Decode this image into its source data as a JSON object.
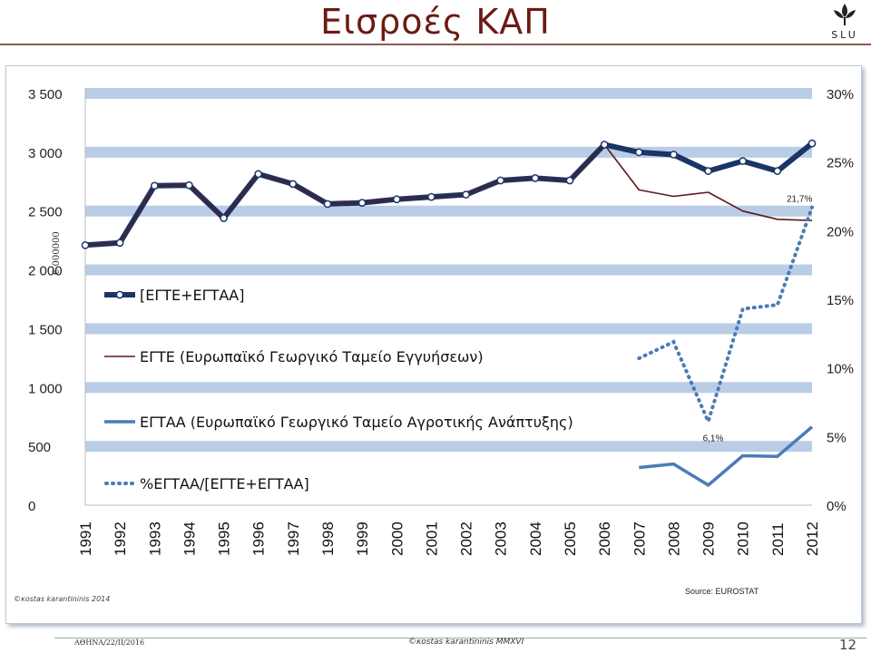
{
  "slide": {
    "title": "Εισροές ΚΑΠ",
    "logo_text": "SLU",
    "footer_left": "ΑΘΗΝΑ/22/ΙΙ/2016",
    "footer_center": "©κostas karantininis MMXVI",
    "page_number": "12"
  },
  "colors": {
    "title": "#6b1a14",
    "band": "#b9cde6",
    "total_series": "#1a3566",
    "egte_series": "#5a1a1a",
    "egtaa_series": "#4a7bb5",
    "pct_series": "#4a7bb5"
  },
  "chart_data": {
    "type": "line",
    "x": [
      "1991",
      "1992",
      "1993",
      "1994",
      "1995",
      "1996",
      "1997",
      "1998",
      "1999",
      "2000",
      "2001",
      "2002",
      "2003",
      "2004",
      "2005",
      "2006",
      "2007",
      "2008",
      "2009",
      "2010",
      "2011",
      "2012"
    ],
    "ylabel": "€ 000000",
    "ylim": [
      0,
      3500
    ],
    "y_ticks": [
      "0",
      "500",
      "1 000",
      "1 500",
      "2 000",
      "2 500",
      "3 000",
      "3 500"
    ],
    "y2lim": [
      0,
      30
    ],
    "y2_ticks": [
      "0%",
      "5%",
      "10%",
      "15%",
      "20%",
      "25%",
      "30%"
    ],
    "grid": "alternating horizontal bands",
    "legend_position": "left-inside",
    "series": [
      {
        "name": "[ΕΓΤΕ+ΕΓΤΑΑ]",
        "axis": "left",
        "style": "thick-line-markers",
        "values": [
          2210,
          2230,
          2715,
          2720,
          2440,
          2815,
          2730,
          2560,
          2570,
          2600,
          2620,
          2640,
          2760,
          2780,
          2760,
          3065,
          3000,
          2980,
          2840,
          2925,
          2840,
          3075
        ]
      },
      {
        "name": "ΕΓΤΕ (Ευρωπαϊκό Γεωργικό Ταμείο Εγγυήσεων)",
        "axis": "left",
        "style": "thin-line",
        "values": [
          2210,
          2230,
          2715,
          2720,
          2440,
          2815,
          2730,
          2560,
          2570,
          2600,
          2620,
          2640,
          2760,
          2780,
          2760,
          3065,
          2680,
          2625,
          2660,
          2500,
          2430,
          2420
        ]
      },
      {
        "name": "ΕΓΤΑΑ (Ευρωπαϊκό Γεωργικό Ταμείο Αγροτικής Ανάπτυξης)",
        "axis": "left",
        "style": "line",
        "values": [
          null,
          null,
          null,
          null,
          null,
          null,
          null,
          null,
          null,
          null,
          null,
          null,
          null,
          null,
          null,
          null,
          320,
          350,
          170,
          420,
          415,
          665
        ]
      },
      {
        "name": "%ΕΓΤΑΑ/[ΕΓΤΕ+ΕΓΤΑΑ]",
        "axis": "right",
        "style": "dotted",
        "values": [
          null,
          null,
          null,
          null,
          null,
          null,
          null,
          null,
          null,
          null,
          null,
          null,
          null,
          null,
          null,
          null,
          10.7,
          11.9,
          6.1,
          14.3,
          14.6,
          21.7
        ]
      }
    ],
    "annotations": [
      {
        "x": "2009",
        "text": "6,1%"
      },
      {
        "x": "2012",
        "text": "21,7%"
      }
    ],
    "source": "Source: EUROSTAT",
    "credit": "©κostas karantininis 2014"
  }
}
